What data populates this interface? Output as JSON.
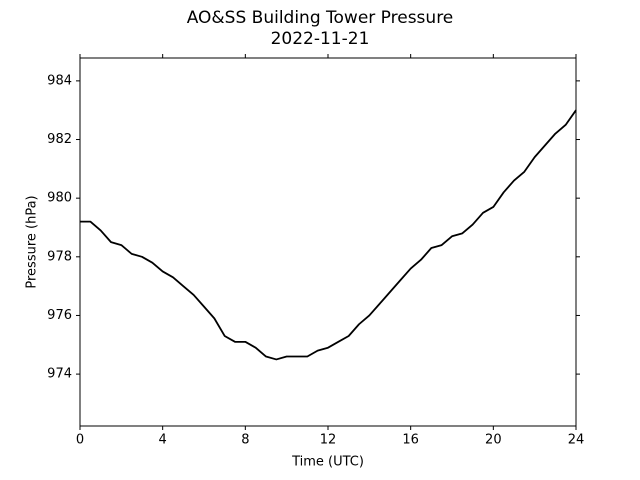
{
  "chart_data": {
    "type": "line",
    "title": "AO&SS Building Tower Pressure",
    "subtitle": "2022-11-21",
    "x_label": "Time (UTC)",
    "y_label": "Pressure (hPa)",
    "xlim": [
      0,
      24
    ],
    "xticks": [
      0,
      4,
      8,
      12,
      16,
      20,
      24
    ],
    "ylim": [
      972.23,
      984.78
    ],
    "yticks": [
      974,
      976,
      978,
      980,
      982,
      984
    ],
    "grid": false,
    "series": [
      {
        "name": "Pressure",
        "color": "#000000",
        "x": [
          0,
          0.5,
          1,
          1.5,
          2,
          2.5,
          3,
          3.5,
          4,
          4.5,
          5,
          5.5,
          6,
          6.5,
          7,
          7.5,
          8,
          8.5,
          9,
          9.5,
          10,
          10.5,
          11,
          11.5,
          12,
          12.5,
          13,
          13.5,
          14,
          14.5,
          15,
          15.5,
          16,
          16.5,
          17,
          17.5,
          18,
          18.5,
          19,
          19.5,
          20,
          20.5,
          21,
          21.5,
          22,
          22.5,
          23,
          23.5,
          24
        ],
        "values": [
          979.2,
          979.2,
          978.9,
          978.5,
          978.4,
          978.1,
          978.0,
          977.8,
          977.5,
          977.3,
          977.0,
          976.7,
          976.3,
          975.9,
          975.3,
          975.1,
          975.1,
          974.9,
          974.6,
          974.5,
          974.6,
          974.6,
          974.6,
          974.8,
          974.9,
          975.1,
          975.3,
          975.7,
          976.0,
          976.4,
          976.8,
          977.2,
          977.6,
          977.9,
          978.3,
          978.4,
          978.7,
          978.8,
          979.1,
          979.5,
          979.7,
          980.2,
          980.6,
          980.9,
          981.4,
          981.8,
          982.2,
          982.5,
          983.0
        ]
      }
    ]
  }
}
